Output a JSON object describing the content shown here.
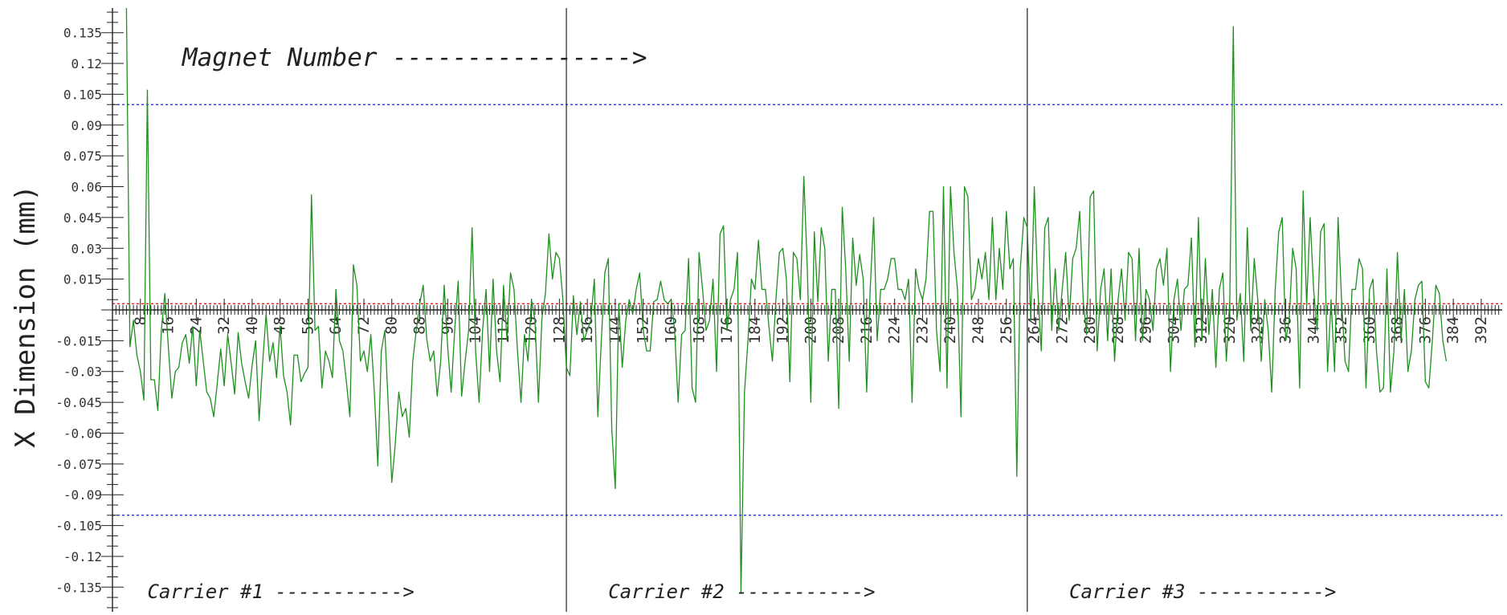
{
  "chart_data": {
    "type": "line",
    "title": "",
    "xlabel": "",
    "ylabel": "X Dimension (mm)",
    "xlim": [
      0,
      398
    ],
    "ylim": [
      -0.147,
      0.147
    ],
    "x_ticks": [
      8,
      16,
      24,
      32,
      40,
      48,
      56,
      64,
      72,
      80,
      88,
      96,
      104,
      112,
      120,
      128,
      136,
      144,
      152,
      160,
      168,
      176,
      184,
      192,
      200,
      208,
      216,
      224,
      232,
      240,
      248,
      256,
      264,
      272,
      280,
      288,
      296,
      304,
      312,
      320,
      328,
      336,
      344,
      352,
      360,
      368,
      376,
      384,
      392
    ],
    "y_ticks": [
      {
        "v": 0.135,
        "label": "0.135"
      },
      {
        "v": 0.12,
        "label": "0.12"
      },
      {
        "v": 0.105,
        "label": "0.105"
      },
      {
        "v": 0.09,
        "label": "0.09"
      },
      {
        "v": 0.075,
        "label": "0.075"
      },
      {
        "v": 0.06,
        "label": "0.06"
      },
      {
        "v": 0.045,
        "label": "0.045"
      },
      {
        "v": 0.03,
        "label": "0.03"
      },
      {
        "v": 0.015,
        "label": "0.015"
      },
      {
        "v": -0.015,
        "label": "-0.015"
      },
      {
        "v": -0.03,
        "label": "-0.03"
      },
      {
        "v": -0.045,
        "label": "-0.045"
      },
      {
        "v": -0.06,
        "label": "-0.06"
      },
      {
        "v": -0.075,
        "label": "-0.075"
      },
      {
        "v": -0.09,
        "label": "-0.09"
      },
      {
        "v": -0.105,
        "label": "-0.105"
      },
      {
        "v": -0.12,
        "label": "-0.12"
      },
      {
        "v": -0.135,
        "label": "-0.135"
      }
    ],
    "reference_lines": [
      {
        "y": 0.1,
        "color": "#1f1fd6",
        "style": "dotted"
      },
      {
        "y": -0.1,
        "color": "#1f1fd6",
        "style": "dotted"
      },
      {
        "y": 0.003,
        "color": "#d62020",
        "style": "dotted"
      }
    ],
    "carrier_dividers_x": [
      130,
      262
    ],
    "annotations": [
      {
        "text": "Magnet Number ---------------->",
        "x": 20,
        "y": 0.123,
        "size": "large"
      },
      {
        "text": "Carrier #1 ----------->",
        "x": 10,
        "y": -0.137,
        "size": "small"
      },
      {
        "text": "Carrier #2 ----------->",
        "x": 142,
        "y": -0.137,
        "size": "small"
      },
      {
        "text": "Carrier #3 ----------->",
        "x": 274,
        "y": -0.137,
        "size": "small"
      }
    ],
    "grid": false,
    "legend": "none",
    "series": [
      {
        "color": "#1f8f1f",
        "x_start": 4,
        "x_step": 1,
        "values": [
          0.147,
          -0.018,
          -0.005,
          -0.022,
          -0.03,
          -0.044,
          0.107,
          -0.034,
          -0.034,
          -0.049,
          -0.01,
          0.008,
          -0.018,
          -0.043,
          -0.03,
          -0.028,
          -0.016,
          -0.012,
          -0.026,
          -0.008,
          -0.037,
          -0.01,
          -0.025,
          -0.04,
          -0.043,
          -0.052,
          -0.036,
          -0.019,
          -0.037,
          -0.012,
          -0.026,
          -0.041,
          -0.011,
          -0.026,
          -0.035,
          -0.043,
          -0.027,
          -0.015,
          -0.054,
          -0.026,
          -0.002,
          -0.025,
          -0.016,
          -0.033,
          -0.008,
          -0.032,
          -0.04,
          -0.056,
          -0.022,
          -0.022,
          -0.035,
          -0.031,
          -0.028,
          0.056,
          -0.01,
          -0.008,
          -0.038,
          -0.02,
          -0.025,
          -0.033,
          0.01,
          -0.015,
          -0.02,
          -0.035,
          -0.052,
          0.022,
          0.012,
          -0.025,
          -0.02,
          -0.03,
          -0.012,
          -0.04,
          -0.076,
          -0.02,
          -0.01,
          -0.047,
          -0.084,
          -0.065,
          -0.04,
          -0.052,
          -0.048,
          -0.062,
          -0.025,
          -0.01,
          0.003,
          0.012,
          -0.014,
          -0.025,
          -0.02,
          -0.042,
          -0.025,
          0.012,
          -0.018,
          -0.04,
          -0.01,
          0.014,
          -0.042,
          -0.025,
          -0.01,
          0.04,
          -0.02,
          -0.045,
          -0.01,
          0.01,
          -0.03,
          0.015,
          -0.02,
          -0.035,
          0.012,
          -0.015,
          0.018,
          0.01,
          -0.02,
          -0.045,
          -0.012,
          -0.025,
          0.005,
          -0.005,
          -0.045,
          -0.004,
          0.008,
          0.037,
          0.015,
          0.028,
          0.025,
          0.005,
          -0.028,
          -0.032,
          0.007,
          -0.012,
          0.004,
          -0.015,
          -0.01,
          -0.005,
          0.015,
          -0.052,
          -0.015,
          0.018,
          0.025,
          -0.058,
          -0.087,
          0.003,
          -0.028,
          -0.005,
          0.005,
          -0.002,
          0.01,
          0.018,
          -0.01,
          -0.02,
          -0.02,
          0.004,
          0.005,
          0.014,
          0.005,
          0.003,
          0.005,
          -0.01,
          -0.045,
          -0.012,
          -0.01,
          0.025,
          -0.038,
          -0.045,
          0.028,
          0.01,
          -0.01,
          -0.005,
          0.015,
          -0.03,
          0.037,
          0.041,
          -0.01,
          0.005,
          0.01,
          0.028,
          -0.138,
          -0.04,
          -0.015,
          0.015,
          0.01,
          0.034,
          0.01,
          0.01,
          -0.008,
          -0.025,
          0.005,
          0.028,
          0.03,
          0.015,
          -0.035,
          0.028,
          0.025,
          0.005,
          0.065,
          0.02,
          -0.045,
          0.038,
          0.004,
          0.04,
          0.03,
          -0.025,
          0.01,
          0.01,
          -0.048,
          0.05,
          0.02,
          -0.025,
          0.035,
          0.012,
          0.027,
          0.015,
          -0.04,
          0.01,
          0.045,
          -0.015,
          0.01,
          0.01,
          0.015,
          0.025,
          0.025,
          0.01,
          0.01,
          0.005,
          0.015,
          -0.045,
          0.02,
          0.01,
          0.005,
          0.015,
          0.048,
          0.048,
          -0.01,
          -0.03,
          0.06,
          -0.038,
          0.06,
          0.028,
          0.01,
          -0.052,
          0.06,
          0.055,
          0.005,
          0.01,
          0.025,
          0.015,
          0.028,
          0.005,
          0.045,
          0.005,
          0.03,
          0.01,
          0.048,
          0.02,
          0.025,
          -0.081,
          0.02,
          0.045,
          0.04,
          -0.005,
          0.06,
          0.01,
          -0.02,
          0.04,
          0.045,
          -0.01,
          0.02,
          -0.01,
          0.01,
          0.028,
          -0.005,
          0.025,
          0.03,
          0.048,
          0.005,
          -0.012,
          0.055,
          0.058,
          -0.02,
          0.01,
          0.02,
          -0.015,
          0.02,
          -0.025,
          0.005,
          0.02,
          -0.005,
          0.028,
          0.025,
          -0.015,
          0.03,
          -0.015,
          0.01,
          0.005,
          -0.01,
          0.02,
          0.025,
          0.012,
          0.03,
          -0.03,
          0.005,
          0.015,
          -0.01,
          0.01,
          0.012,
          0.035,
          -0.018,
          0.045,
          -0.015,
          0.025,
          -0.012,
          0.01,
          -0.028,
          0.01,
          0.018,
          -0.025,
          0.005,
          0.138,
          -0.005,
          0.008,
          -0.025,
          0.04,
          -0.01,
          0.025,
          0.005,
          -0.025,
          0.005,
          -0.01,
          -0.04,
          0.01,
          0.038,
          0.045,
          -0.015,
          -0.005,
          0.03,
          0.02,
          -0.038,
          0.058,
          0.002,
          0.045,
          0.01,
          -0.01,
          0.038,
          0.042,
          -0.03,
          0.005,
          -0.03,
          0.045,
          0.005,
          -0.025,
          -0.03,
          0.01,
          0.01,
          0.025,
          0.02,
          -0.038,
          0.01,
          0.015,
          -0.02,
          -0.04,
          -0.038,
          0.02,
          -0.04,
          -0.02,
          0.028,
          -0.015,
          0.01,
          -0.03,
          -0.02,
          0.005,
          0.012,
          0.014,
          -0.035,
          -0.038,
          -0.015,
          0.012,
          0.008,
          -0.015,
          -0.025
        ]
      }
    ]
  }
}
